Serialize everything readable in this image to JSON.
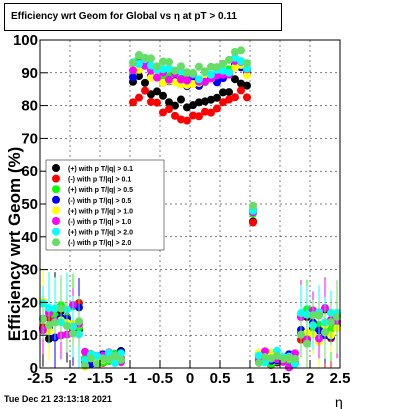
{
  "title": "Efficiency wrt Geom for Global vs   η at pT > 0.11",
  "timestamp": "Tue Dec 21 23:13:18 2021",
  "chart_data": {
    "type": "scatter",
    "xlabel": "η",
    "ylabel": "Efficiency wrt Geom (%)",
    "xlim": [
      -2.5,
      2.5
    ],
    "ylim": [
      0,
      100
    ],
    "xticks": [
      "-2.5",
      "-2",
      "-1.5",
      "-1",
      "-0.5",
      "0",
      "0.5",
      "1",
      "1.5",
      "2",
      "2.5"
    ],
    "yticks": [
      "0",
      "10",
      "20",
      "30",
      "40",
      "50",
      "60",
      "70",
      "80",
      "90",
      "100"
    ],
    "grid": true,
    "legend_position": "left-middle",
    "series": [
      {
        "name": "(+) with p T/|q| > 0.1",
        "color": "#000000",
        "plateau": 86
      },
      {
        "name": "(-) with p T/|q| > 0.1",
        "color": "#ff0000",
        "plateau": 82
      },
      {
        "name": "(+) with p T/|q| > 0.5",
        "color": "#00ff00",
        "plateau": 91
      },
      {
        "name": "(-) with p T/|q| > 0.5",
        "color": "#0000ff",
        "plateau": 90
      },
      {
        "name": "(+) with p T/|q| > 1.0",
        "color": "#ffff00",
        "plateau": 90
      },
      {
        "name": "(-) with p T/|q| > 1.0",
        "color": "#ff00ff",
        "plateau": 91
      },
      {
        "name": "(+) with p T/|q| > 2.0",
        "color": "#00ffff",
        "plateau": 92
      },
      {
        "name": "(-) with p T/|q| > 2.0",
        "color": "#66dd66",
        "plateau": 94
      }
    ]
  }
}
